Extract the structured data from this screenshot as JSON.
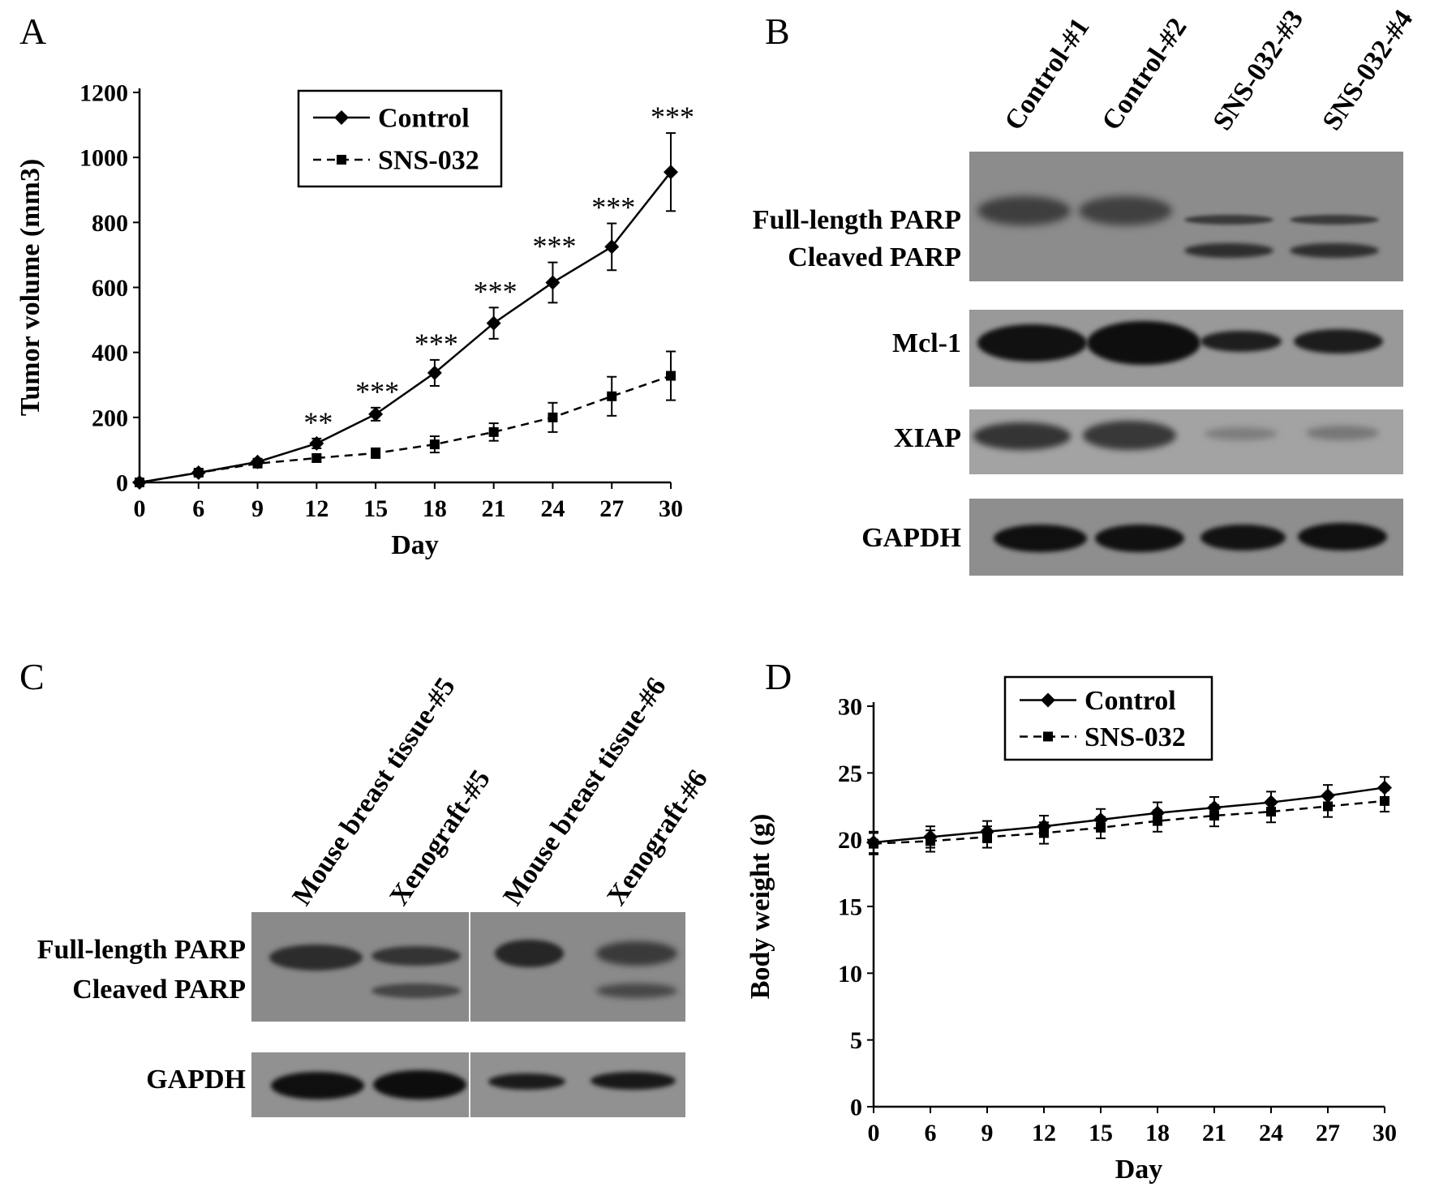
{
  "panels": {
    "A": {
      "letter": "A"
    },
    "B": {
      "letter": "B"
    },
    "C": {
      "letter": "C"
    },
    "D": {
      "letter": "D"
    }
  },
  "chart_data": [
    {
      "panel": "A",
      "type": "line",
      "xlabel": "Day",
      "ylabel": "Tumor volume (mm3)",
      "x": [
        0,
        6,
        9,
        12,
        15,
        18,
        21,
        24,
        27,
        30
      ],
      "x_ticks": [
        "0",
        "6",
        "9",
        "12",
        "15",
        "18",
        "21",
        "24",
        "27",
        "30"
      ],
      "y_ticks": [
        "0",
        "200",
        "400",
        "600",
        "800",
        "1000",
        "1200"
      ],
      "ylim": [
        0,
        1200
      ],
      "legend": "top-center",
      "series": [
        {
          "name": "Control",
          "style": "solid",
          "marker": "diamond",
          "values": [
            0,
            30,
            63,
            120,
            210,
            337,
            490,
            615,
            725,
            955
          ],
          "errors": [
            0,
            10,
            10,
            15,
            20,
            40,
            48,
            62,
            72,
            120
          ]
        },
        {
          "name": "SNS-032",
          "style": "dashed",
          "marker": "square",
          "values": [
            0,
            30,
            58,
            75,
            90,
            117,
            155,
            200,
            265,
            328
          ],
          "errors": [
            0,
            8,
            8,
            12,
            15,
            25,
            27,
            45,
            60,
            75
          ]
        }
      ],
      "annotations": [
        "",
        "",
        "",
        "**",
        "***",
        "***",
        "***",
        "***",
        "***",
        "***"
      ]
    },
    {
      "panel": "D",
      "type": "line",
      "xlabel": "Day",
      "ylabel": "Body weight (g)",
      "x": [
        0,
        6,
        9,
        12,
        15,
        18,
        21,
        24,
        27,
        30
      ],
      "x_ticks": [
        "0",
        "6",
        "9",
        "12",
        "15",
        "18",
        "21",
        "24",
        "27",
        "30"
      ],
      "y_ticks": [
        "0",
        "5",
        "10",
        "15",
        "20",
        "25",
        "30"
      ],
      "ylim": [
        0,
        30
      ],
      "legend": "top-center",
      "series": [
        {
          "name": "Control",
          "style": "solid",
          "marker": "diamond",
          "values": [
            19.8,
            20.2,
            20.6,
            21.0,
            21.5,
            22.0,
            22.4,
            22.8,
            23.3,
            23.9
          ],
          "errors": [
            0.8,
            0.8,
            0.8,
            0.8,
            0.8,
            0.8,
            0.8,
            0.8,
            0.8,
            0.8
          ]
        },
        {
          "name": "SNS-032",
          "style": "dashed",
          "marker": "square",
          "values": [
            19.7,
            19.9,
            20.2,
            20.5,
            20.9,
            21.4,
            21.8,
            22.1,
            22.5,
            22.9
          ],
          "errors": [
            0.8,
            0.8,
            0.8,
            0.8,
            0.8,
            0.8,
            0.8,
            0.8,
            0.8,
            0.8
          ]
        }
      ]
    }
  ],
  "blotB": {
    "lanes": [
      "Control-#1",
      "Control-#2",
      "SNS-032-#3",
      "SNS-032-#4"
    ],
    "rows": [
      "Full-length PARP",
      "Cleaved PARP",
      "Mcl-1",
      "XIAP",
      "GAPDH"
    ]
  },
  "blotC": {
    "lanes": [
      "Mouse breast tissue-#5",
      "Xenograft-#5",
      "Mouse breast tissue-#6",
      "Xenograft-#6"
    ],
    "rows": [
      "Full-length PARP",
      "Cleaved PARP",
      "GAPDH"
    ]
  }
}
